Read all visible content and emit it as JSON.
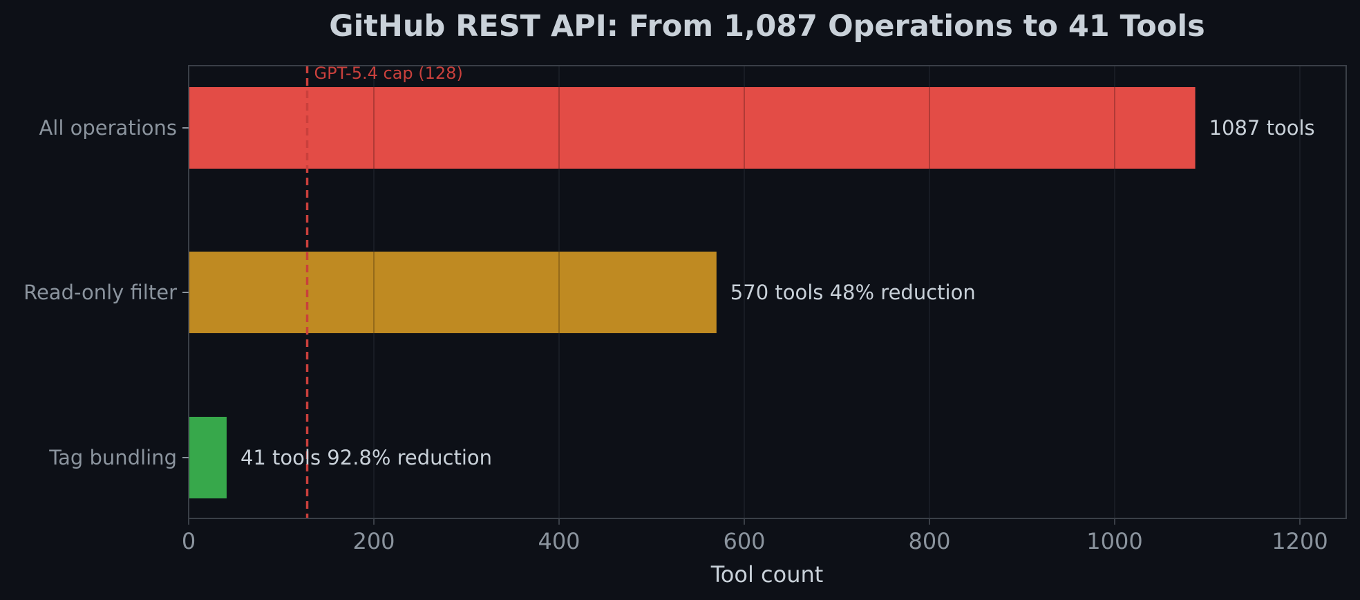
{
  "chart_data": {
    "type": "bar",
    "orientation": "horizontal",
    "title": "GitHub REST API: From 1,087 Operations to 41 Tools",
    "xlabel": "Tool count",
    "ylabel": "",
    "xlim": [
      0,
      1250
    ],
    "x_ticks": [
      0,
      200,
      400,
      600,
      800,
      1000,
      1200
    ],
    "x_tick_labels": [
      "0",
      "200",
      "400",
      "600",
      "800",
      "1000",
      "1200"
    ],
    "grid": "vertical",
    "categories": [
      "All operations",
      "Read-only filter",
      "Tag bundling"
    ],
    "values": [
      1087,
      570,
      41
    ],
    "value_labels": [
      "1087 tools",
      "570 tools  48% reduction",
      "41 tools  92.8% reduction"
    ],
    "bar_colors": [
      "#e34c46",
      "#bf8a22",
      "#37a84b"
    ],
    "reference_line": {
      "value": 128,
      "label": "GPT-5.4 cap (128)",
      "color": "#c9403c",
      "style": "dashed"
    }
  },
  "colors": {
    "background": "#0d1017",
    "title": "#c9d1d9",
    "axis_text": "#8b949e",
    "value_text": "#c9d1d9",
    "axis_label": "#c9d1d9",
    "spine": "#3a3f47",
    "grid": "#1c2129"
  }
}
